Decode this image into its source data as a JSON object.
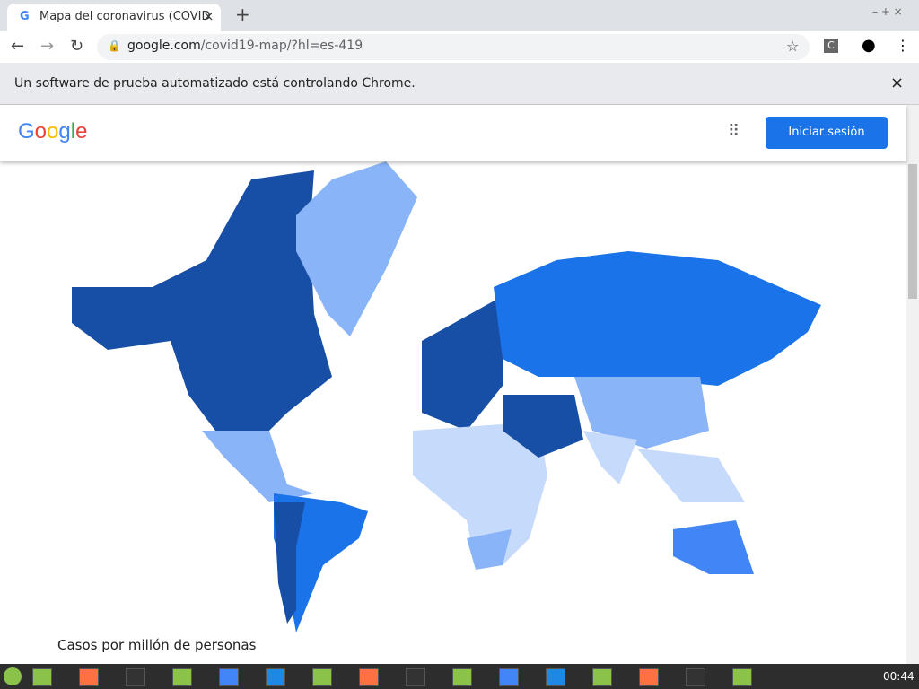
{
  "browser": {
    "tab_title": "Mapa del coronavirus (COVID",
    "url_host": "google.com",
    "url_path": "/covid19-map/?hl=es-419",
    "infobar": "Un software de prueba automatizado está controlando Chrome.",
    "profile_initial": "C"
  },
  "page": {
    "logo": "Google",
    "sign_in": "Iniciar sesión",
    "legend_title": "Casos por millón de personas"
  },
  "taskbar": {
    "clock": "00:44"
  }
}
